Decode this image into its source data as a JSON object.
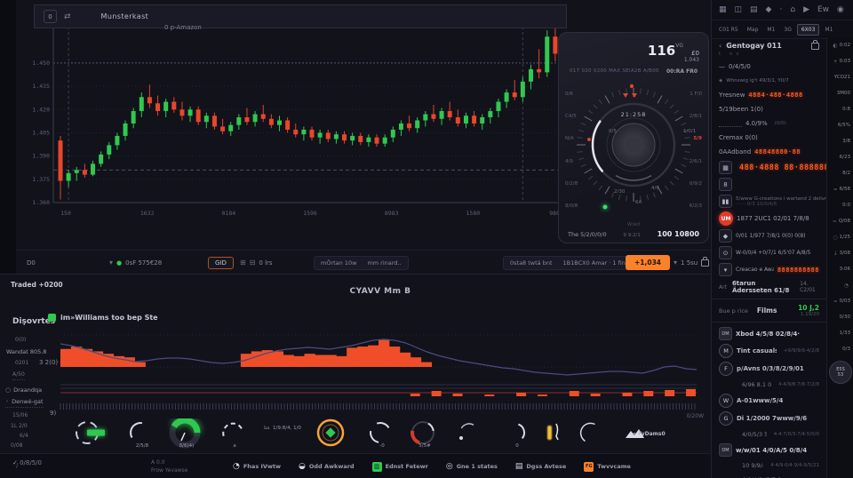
{
  "colors": {
    "accent_orange": "#f9822a",
    "led_orange": "#ff5a1f",
    "green": "#2fc94f",
    "red": "#e0452c",
    "purple": "#4a4d80"
  },
  "window": {
    "badge": "0",
    "title": "Munsterkast"
  },
  "toolbar": {
    "left_badge": "D0",
    "timeframe": "0sF 575€28",
    "grid_button": "GID",
    "hrs_label": "0 lrs",
    "seg1": [
      "mÖrtan 10w",
      "mm rinard.."
    ],
    "seg2": [
      "0sta8 twtä bnt",
      "1B1BCX0 Amar · 1 finla et"
    ],
    "buy_button": "+1,034",
    "lock_label": "1 5su"
  },
  "gauge": {
    "big_value": "116",
    "big_sup": "VG",
    "big_sub": "1.043",
    "big_cur": "£0",
    "small_left": "017 020 0200 MAX   SEIA2B A/B00",
    "small_right": "00:RA FR0",
    "dial_label": "21:258",
    "ticks_left": [
      "0/6",
      "C4/5",
      "N/A",
      "4/9",
      "0/2/8",
      "8/0/8"
    ],
    "ticks_right": [
      {
        "l": "1 F/0"
      },
      {
        "l": "2/8/1"
      },
      {
        "l": "5/9",
        "red": true
      },
      {
        "l": "2/6/1"
      },
      {
        "l": "0/9/2"
      },
      {
        "l": "6/2/3"
      }
    ],
    "inner": [
      "0/5",
      "1/0/1",
      "2/30",
      "4/0",
      "6A"
    ],
    "bottom_left": "The 5/2/0/0/0",
    "bottom_center": "9 9:2/1",
    "bottom_right": "100 10800",
    "bottom_mid": "W/wd"
  },
  "chart_data": [
    {
      "type": "candlestick",
      "annotation": "0 p-Amazon",
      "ylim": [
        1.36,
        1.47
      ],
      "yticks": [
        1.45,
        1.435,
        1.42,
        1.405,
        1.39,
        1.375,
        1.36
      ],
      "xticks": [
        "150",
        "1632",
        "0184",
        "1596",
        "8983",
        "1580",
        "980"
      ],
      "dotted_level": 1.45,
      "dashed_level": 1.381,
      "vline_indices": [
        1,
        57
      ],
      "candles": [
        [
          1.4,
          1.403,
          1.362,
          1.374
        ],
        [
          1.374,
          1.381,
          1.37,
          1.379
        ],
        [
          1.379,
          1.383,
          1.374,
          1.381
        ],
        [
          1.381,
          1.385,
          1.376,
          1.378
        ],
        [
          1.378,
          1.387,
          1.377,
          1.385
        ],
        [
          1.385,
          1.393,
          1.383,
          1.391
        ],
        [
          1.391,
          1.399,
          1.388,
          1.397
        ],
        [
          1.397,
          1.405,
          1.394,
          1.403
        ],
        [
          1.403,
          1.413,
          1.4,
          1.411
        ],
        [
          1.411,
          1.421,
          1.408,
          1.419
        ],
        [
          1.419,
          1.431,
          1.415,
          1.428
        ],
        [
          1.428,
          1.436,
          1.421,
          1.424
        ],
        [
          1.424,
          1.429,
          1.416,
          1.419
        ],
        [
          1.419,
          1.427,
          1.415,
          1.425
        ],
        [
          1.425,
          1.428,
          1.418,
          1.42
        ],
        [
          1.42,
          1.425,
          1.413,
          1.416
        ],
        [
          1.416,
          1.422,
          1.412,
          1.42
        ],
        [
          1.42,
          1.422,
          1.41,
          1.412
        ],
        [
          1.412,
          1.418,
          1.408,
          1.416
        ],
        [
          1.416,
          1.418,
          1.407,
          1.409
        ],
        [
          1.409,
          1.414,
          1.404,
          1.406
        ],
        [
          1.406,
          1.412,
          1.403,
          1.41
        ],
        [
          1.41,
          1.417,
          1.407,
          1.415
        ],
        [
          1.415,
          1.421,
          1.41,
          1.412
        ],
        [
          1.412,
          1.419,
          1.409,
          1.417
        ],
        [
          1.417,
          1.423,
          1.412,
          1.414
        ],
        [
          1.414,
          1.417,
          1.408,
          1.41
        ],
        [
          1.41,
          1.416,
          1.406,
          1.413
        ],
        [
          1.413,
          1.415,
          1.405,
          1.407
        ],
        [
          1.407,
          1.411,
          1.402,
          1.404
        ],
        [
          1.404,
          1.409,
          1.4,
          1.407
        ],
        [
          1.407,
          1.409,
          1.4,
          1.402
        ],
        [
          1.402,
          1.407,
          1.398,
          1.405
        ],
        [
          1.405,
          1.407,
          1.399,
          1.401
        ],
        [
          1.401,
          1.406,
          1.398,
          1.404
        ],
        [
          1.404,
          1.406,
          1.398,
          1.4
        ],
        [
          1.4,
          1.405,
          1.397,
          1.403
        ],
        [
          1.403,
          1.405,
          1.397,
          1.399
        ],
        [
          1.399,
          1.404,
          1.396,
          1.402
        ],
        [
          1.402,
          1.404,
          1.396,
          1.398
        ],
        [
          1.398,
          1.404,
          1.396,
          1.402
        ],
        [
          1.402,
          1.409,
          1.399,
          1.407
        ],
        [
          1.407,
          1.413,
          1.403,
          1.411
        ],
        [
          1.411,
          1.416,
          1.406,
          1.408
        ],
        [
          1.408,
          1.415,
          1.405,
          1.413
        ],
        [
          1.413,
          1.419,
          1.409,
          1.417
        ],
        [
          1.417,
          1.423,
          1.412,
          1.414
        ],
        [
          1.414,
          1.421,
          1.41,
          1.419
        ],
        [
          1.419,
          1.425,
          1.413,
          1.415
        ],
        [
          1.415,
          1.42,
          1.409,
          1.411
        ],
        [
          1.411,
          1.418,
          1.408,
          1.416
        ],
        [
          1.416,
          1.419,
          1.409,
          1.411
        ],
        [
          1.411,
          1.417,
          1.407,
          1.415
        ],
        [
          1.415,
          1.421,
          1.411,
          1.419
        ],
        [
          1.419,
          1.427,
          1.415,
          1.425
        ],
        [
          1.425,
          1.433,
          1.421,
          1.431
        ],
        [
          1.431,
          1.439,
          1.426,
          1.428
        ],
        [
          1.428,
          1.441,
          1.425,
          1.438
        ],
        [
          1.438,
          1.449,
          1.433,
          1.446
        ],
        [
          1.446,
          1.459,
          1.44,
          1.444
        ],
        [
          1.444,
          1.471,
          1.441,
          1.467
        ],
        [
          1.467,
          1.473,
          1.451,
          1.456
        ]
      ]
    },
    {
      "type": "area+line",
      "title": "CYAVV Mm B",
      "legend": "im»Williams too bep Ste",
      "ylabel_left": "3 2(0)",
      "ylabel_bottom": "9)",
      "right_label": "0/20W",
      "bars": [
        15,
        17,
        15,
        13,
        11,
        9,
        8,
        4,
        0,
        0,
        0,
        0,
        0,
        0,
        0,
        0,
        0,
        11,
        13,
        14,
        13,
        10,
        9,
        11,
        10,
        10,
        9,
        16,
        17,
        18,
        23,
        17,
        12,
        8,
        4,
        0,
        0,
        0,
        0,
        0,
        0,
        0,
        0,
        0,
        0,
        0,
        0,
        0,
        0,
        0,
        0,
        0,
        0,
        0,
        0,
        0,
        0,
        0,
        0,
        0
      ],
      "line": [
        30,
        32,
        35,
        39,
        43,
        46,
        48,
        50,
        49,
        47,
        46,
        46,
        47,
        49,
        51,
        52,
        51,
        49,
        45,
        41,
        38,
        36,
        35,
        34,
        35,
        36,
        34,
        32,
        29,
        26,
        25,
        26,
        29,
        34,
        39,
        43,
        46,
        49,
        51,
        53,
        55,
        57,
        58,
        60,
        62,
        63,
        64,
        65,
        64,
        63,
        62,
        61,
        61,
        62,
        63,
        60,
        56,
        55,
        58,
        59
      ],
      "lower_bars": [
        [
          33,
          3
        ],
        [
          35,
          6
        ],
        [
          37,
          3
        ],
        [
          40,
          2
        ],
        [
          43,
          4
        ],
        [
          45,
          2
        ],
        [
          48,
          6
        ],
        [
          50,
          3
        ],
        [
          53,
          4
        ],
        [
          55,
          6
        ],
        [
          57,
          7
        ],
        [
          59,
          8
        ]
      ]
    }
  ],
  "bottom_left": {
    "top": "Traded +0200",
    "header": "Dişovrtés",
    "r1": "0(0)",
    "r2": "Wandat 805.8",
    "r3": "0201",
    "r4": "A/50",
    "radio1": "Draandqa",
    "radio2": "Denwé-gat",
    "r5": "15/06",
    "r6": "1L 2/0",
    "r7": "6/4",
    "r8": "0/08"
  },
  "bottom_gauges": {
    "flag_label": "» FyDams0",
    "corner_label": "0/20W",
    "items": [
      {
        "type": "dial-bar",
        "label": ""
      },
      {
        "type": "arc",
        "label": "2/5/8"
      },
      {
        "type": "big-green",
        "label": "8/6(4)"
      },
      {
        "type": "dash-arc",
        "label": "a"
      },
      {
        "type": "text",
        "label": "Lu",
        "sub": "1/9:8/4, 1/0"
      },
      {
        "type": "diamond-ring",
        "label": ""
      },
      {
        "type": "bracket",
        "label": "-0"
      },
      {
        "type": "red-arc",
        "label": "5/5#"
      },
      {
        "type": "dot-arc",
        "label": ""
      },
      {
        "type": "brace",
        "label": "0"
      },
      {
        "type": "candle",
        "label": ""
      },
      {
        "type": "c-arc",
        "label": ""
      },
      {
        "type": "peak",
        "label": ""
      }
    ]
  },
  "footer": {
    "check_label": "0/8/5/0",
    "note_top": "A 0.0",
    "note_bottom": "Frow Yevawse",
    "slash": "/",
    "items": [
      {
        "icon": "hand",
        "label": "Fhas IVwtw"
      },
      {
        "icon": "bird",
        "label": "Odd Awkward"
      },
      {
        "icon": "chart",
        "label": "Ednst Fetewr"
      },
      {
        "icon": "globe",
        "label": "Gne 1 states"
      },
      {
        "icon": "doc",
        "label": "Dgss Avtese"
      },
      {
        "icon": "fg",
        "label": "Twvvcame"
      }
    ]
  },
  "sidebar": {
    "icons": [
      {
        "glyph": "▦",
        "name": "grid-icon"
      },
      {
        "glyph": "◫",
        "name": "panels-icon"
      },
      {
        "glyph": "▤",
        "name": "rows-icon"
      },
      {
        "glyph": "◆",
        "name": "diamond-icon"
      },
      {
        "glyph": "·",
        "name": "dot-icon"
      },
      {
        "glyph": "⌂",
        "name": "home-icon"
      },
      {
        "glyph": "▶",
        "name": "play-icon"
      },
      {
        "glyph": "Ew",
        "name": "ew-label"
      },
      {
        "glyph": "◉",
        "name": "record-icon"
      }
    ],
    "tabs": [
      {
        "label": "C01 R5"
      },
      {
        "label": "Map"
      },
      {
        "label": "M1"
      },
      {
        "label": "3G"
      },
      {
        "label": "6X03",
        "selected": true
      },
      {
        "label": "M1"
      }
    ],
    "header": {
      "back": "‹",
      "title": "Gentogay 011"
    },
    "subheader": "t  nv",
    "rows": [
      {
        "t": "plain",
        "icon": "—",
        "label": "0/4/5/0"
      },
      {
        "t": "tiny",
        "icon": "◈",
        "label": "Whnswig ig't 49/3/1, Y0/7"
      },
      {
        "t": "led",
        "label": "Yresnew",
        "led": "4884·488·4888"
      },
      {
        "t": "plain",
        "label": "5/19been 1(0)"
      },
      {
        "t": "spark",
        "label": "4.0/9%",
        "extra": "(0/0)"
      },
      {
        "t": "plain",
        "label": "Cremax 0(0)"
      },
      {
        "t": "led",
        "label": "0AAdband",
        "led": "48848880·88"
      },
      {
        "t": "ledbig",
        "icon": "▦",
        "label": "1 8/5/0/0",
        "led": "488·4888 88·888888"
      },
      {
        "t": "ibox",
        "label": "8"
      },
      {
        "t": "twoline",
        "icon": "▮▮",
        "label": "5/www G-creations i wartand 2 delivnings",
        "sub": "⋯⋯ 0/3 10/0/4/6"
      },
      {
        "t": "avatar",
        "avatar": "UM",
        "label": "1877 2UC1  02/01  7/8/8"
      },
      {
        "t": "irow",
        "icon": "◆",
        "label": "0/01 1/977 7/8/1  0(0)  0(8)"
      },
      {
        "t": "irow",
        "icon": "⊙",
        "label": "W-0/0/4 +0/7/1  6/5'07 A/8/5"
      },
      {
        "t": "ledrow",
        "icon": "▾",
        "label": "Creacao e Awa",
        "led": "8888888888"
      },
      {
        "t": "wide",
        "pre": "Art",
        "label": "6tarun Ädersseten 61/8",
        "suf": "14. C2/01"
      },
      {
        "t": "trade",
        "c1": "Bue p rice",
        "c2": "Films",
        "val": "10 J,2",
        "sub": "1.19/20"
      },
      {
        "t": "irowb",
        "icon": "DM",
        "label": "Xbod 4/5/8 02/8/4·"
      },
      {
        "t": "circ",
        "icon": "M",
        "label": "Tint casualse",
        "tail": "+9/9/9/9·4/2/8"
      },
      {
        "t": "circ",
        "icon": "F",
        "label": "p/Avns 0/3/8/2/9/01",
        "tail": ""
      },
      {
        "t": "indent",
        "label": "6/96 8.1 0/5/1",
        "tail": "4·4/9/8·7/8·7/2/8"
      },
      {
        "t": "circ",
        "icon": "W",
        "label": "A-01www/5/4",
        "tail": ""
      },
      {
        "t": "circ",
        "icon": "G",
        "label": "Di 1/2000 7www/9/6",
        "tail": ""
      },
      {
        "t": "indent",
        "label": "4/0/5/3 5/7/0",
        "tail": "4·4·7/0/3·7/4·5/0/0"
      },
      {
        "t": "irowb",
        "icon": "DM",
        "label": "w/w/01 4/0/A/5 0/8/4"
      },
      {
        "t": "indent",
        "label": "10 9/9/4/8 A/0/1",
        "tail": "4·4/9·0/4·9/4·9/5/21"
      },
      {
        "t": "indent",
        "label": "4/0/4/2 /5/7 8·",
        "tail": "⋯"
      }
    ]
  },
  "rightcol": {
    "rows": [
      {
        "icon": "◐",
        "name": "moon-icon",
        "label": "0:02"
      },
      {
        "icon": "+",
        "name": "plus-icon",
        "label": "0:03"
      },
      {
        "label": "YCO21"
      },
      {
        "label": "3M00"
      },
      {
        "label": "0:8"
      },
      {
        "label": "6/5%"
      },
      {
        "label": "3/8"
      },
      {
        "label": "6/23"
      },
      {
        "label": "8/2"
      },
      {
        "icon": "≈",
        "name": "wave-icon",
        "label": "6/58"
      },
      {
        "label": "0:0"
      },
      {
        "icon": "≈",
        "name": "wave-icon",
        "label": "Q/08"
      },
      {
        "icon": "○",
        "name": "ring-icon",
        "label": "1/25"
      },
      {
        "icon": "↓",
        "name": "down-arrow-icon",
        "label": "3/08"
      },
      {
        "label": "3:06"
      },
      {
        "icon": "◔",
        "name": "gauge-icon",
        "label": ""
      },
      {
        "icon": "≈",
        "name": "wave-icon",
        "label": "0/03"
      },
      {
        "label": "0/30"
      },
      {
        "label": "1/33"
      },
      {
        "label": "0/3"
      },
      {
        "badge": "E5S\n53"
      }
    ]
  }
}
